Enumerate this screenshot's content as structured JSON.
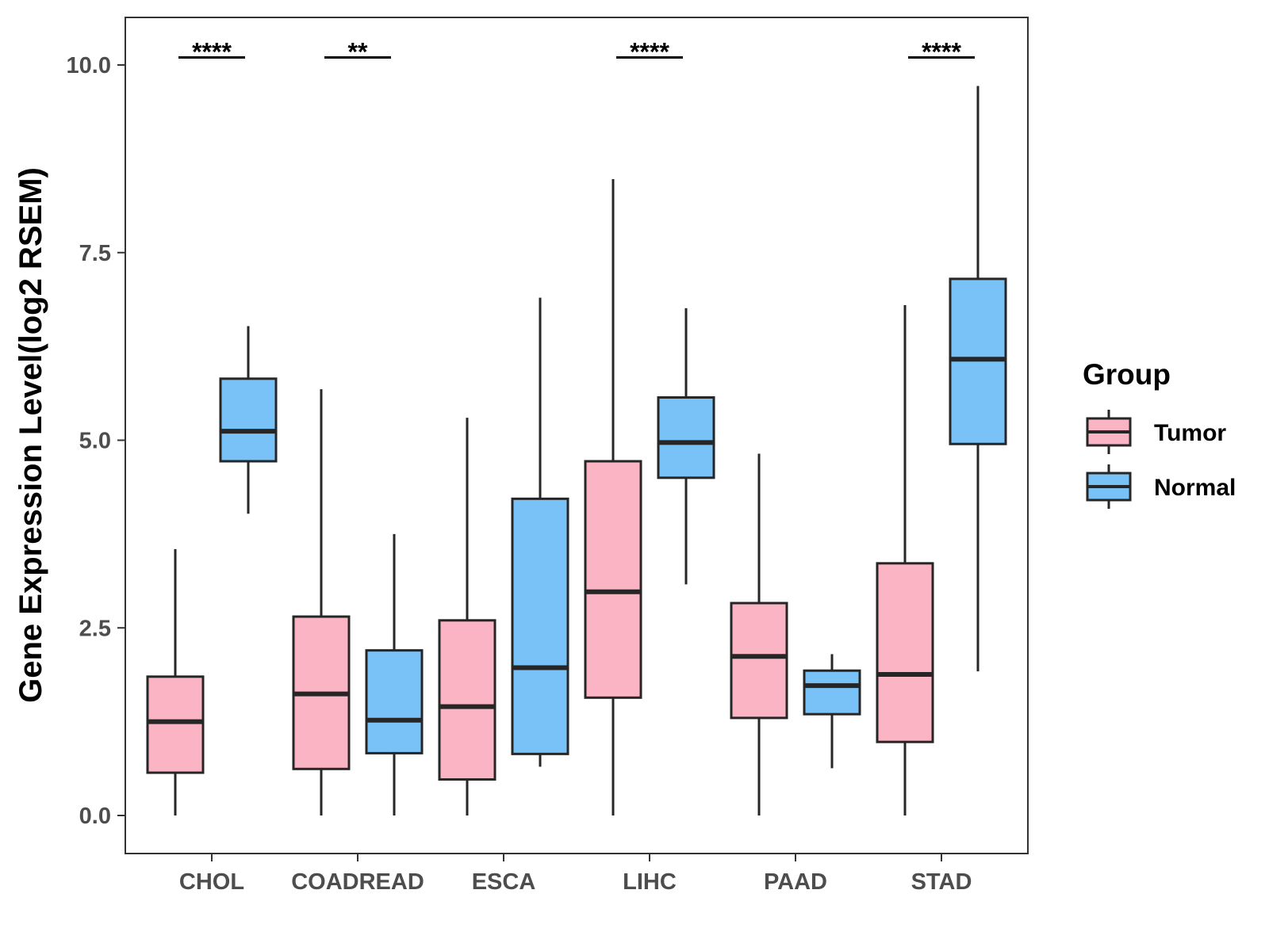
{
  "chart_data": {
    "type": "boxplot",
    "title": "",
    "xlabel": "",
    "ylabel": "Gene Expression Level(log2 RSEM)",
    "ylim": [
      -0.5,
      10.6
    ],
    "yticks": [
      0.0,
      2.5,
      5.0,
      7.5,
      10.0
    ],
    "ytick_labels": [
      "0.0",
      "2.5",
      "5.0",
      "7.5",
      "10.0"
    ],
    "categories": [
      "CHOL",
      "COADREAD",
      "ESCA",
      "LIHC",
      "PAAD",
      "STAD"
    ],
    "legend": {
      "title": "Group",
      "position": "right",
      "entries": [
        {
          "name": "Tumor",
          "color": "#FBB4C3"
        },
        {
          "name": "Normal",
          "color": "#79C2F7"
        }
      ]
    },
    "series": [
      {
        "name": "Tumor",
        "color": "#FBB4C3",
        "boxes": [
          {
            "category": "CHOL",
            "min": 0.0,
            "q1": 0.57,
            "median": 1.25,
            "q3": 1.85,
            "max": 3.55
          },
          {
            "category": "COADREAD",
            "min": 0.0,
            "q1": 0.62,
            "median": 1.62,
            "q3": 2.65,
            "max": 5.68
          },
          {
            "category": "ESCA",
            "min": 0.0,
            "q1": 0.48,
            "median": 1.45,
            "q3": 2.6,
            "max": 5.3
          },
          {
            "category": "LIHC",
            "min": 0.0,
            "q1": 1.57,
            "median": 2.98,
            "q3": 4.72,
            "max": 8.48
          },
          {
            "category": "PAAD",
            "min": 0.0,
            "q1": 1.3,
            "median": 2.12,
            "q3": 2.83,
            "max": 4.82
          },
          {
            "category": "STAD",
            "min": 0.0,
            "q1": 0.98,
            "median": 1.88,
            "q3": 3.36,
            "max": 6.8
          }
        ]
      },
      {
        "name": "Normal",
        "color": "#79C2F7",
        "boxes": [
          {
            "category": "CHOL",
            "min": 4.02,
            "q1": 4.72,
            "median": 5.12,
            "q3": 5.82,
            "max": 6.52
          },
          {
            "category": "COADREAD",
            "min": 0.0,
            "q1": 0.83,
            "median": 1.27,
            "q3": 2.2,
            "max": 3.75
          },
          {
            "category": "ESCA",
            "min": 0.65,
            "q1": 0.82,
            "median": 1.97,
            "q3": 4.22,
            "max": 6.9
          },
          {
            "category": "LIHC",
            "min": 3.08,
            "q1": 4.5,
            "median": 4.97,
            "q3": 5.57,
            "max": 6.76
          },
          {
            "category": "PAAD",
            "min": 0.63,
            "q1": 1.35,
            "median": 1.73,
            "q3": 1.93,
            "max": 2.15
          },
          {
            "category": "STAD",
            "min": 1.92,
            "q1": 4.95,
            "median": 6.08,
            "q3": 7.15,
            "max": 9.72
          }
        ]
      }
    ],
    "annotations": [
      {
        "category": "CHOL",
        "label": "****",
        "y": 10.1
      },
      {
        "category": "COADREAD",
        "label": "**",
        "y": 10.1
      },
      {
        "category": "LIHC",
        "label": "****",
        "y": 10.1
      },
      {
        "category": "STAD",
        "label": "****",
        "y": 10.1
      }
    ],
    "grid": false
  }
}
